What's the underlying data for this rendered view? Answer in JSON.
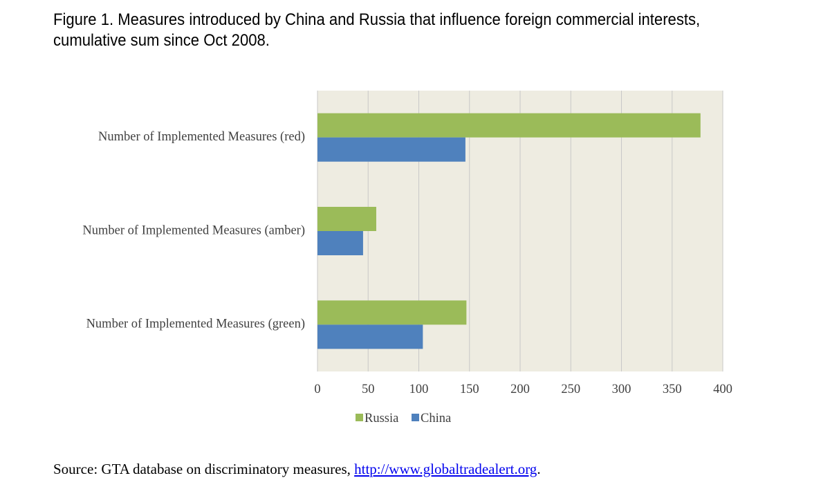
{
  "figure": {
    "title": "Figure 1. Measures introduced by China and Russia that influence foreign commercial interests, cumulative sum since Oct 2008.",
    "source_prefix": "Source: GTA database on discriminatory measures, ",
    "source_link": "http://www.globaltradealert.org",
    "source_suffix": "."
  },
  "chart_data": {
    "type": "bar",
    "orientation": "horizontal",
    "categories": [
      "Number of Implemented Measures (red)",
      "Number of Implemented Measures (amber)",
      "Number of Implemented Measures (green)"
    ],
    "series": [
      {
        "name": "Russia",
        "color": "#9bbb59",
        "values": [
          378,
          58,
          147
        ]
      },
      {
        "name": "China",
        "color": "#4f81bd",
        "values": [
          146,
          45,
          104
        ]
      }
    ],
    "xlim": [
      0,
      400
    ],
    "xticks": [
      0,
      50,
      100,
      150,
      200,
      250,
      300,
      350,
      400
    ],
    "grid": true,
    "plot_background": "#eeece1",
    "legend_position": "bottom"
  }
}
